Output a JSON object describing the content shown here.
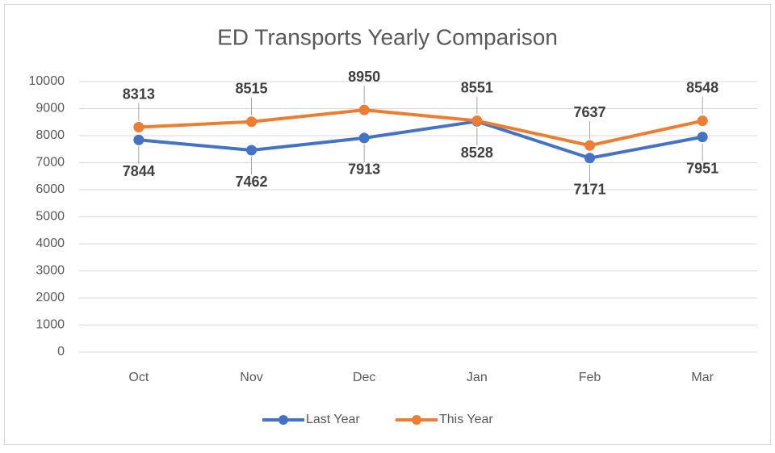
{
  "chart_data": {
    "type": "line",
    "title": "ED Transports Yearly Comparison",
    "categories": [
      "Oct",
      "Nov",
      "Dec",
      "Jan",
      "Feb",
      "Mar"
    ],
    "series": [
      {
        "name": "Last Year",
        "color": "#4472c4",
        "values": [
          7844,
          7462,
          7913,
          8528,
          7171,
          7951
        ]
      },
      {
        "name": "This Year",
        "color": "#ed7d31",
        "values": [
          8313,
          8515,
          8950,
          8551,
          7637,
          8548
        ]
      }
    ],
    "ylim": [
      0,
      10000
    ],
    "yticks": [
      0,
      1000,
      2000,
      3000,
      4000,
      5000,
      6000,
      7000,
      8000,
      9000,
      10000
    ],
    "grid": true,
    "legend": "bottom"
  }
}
